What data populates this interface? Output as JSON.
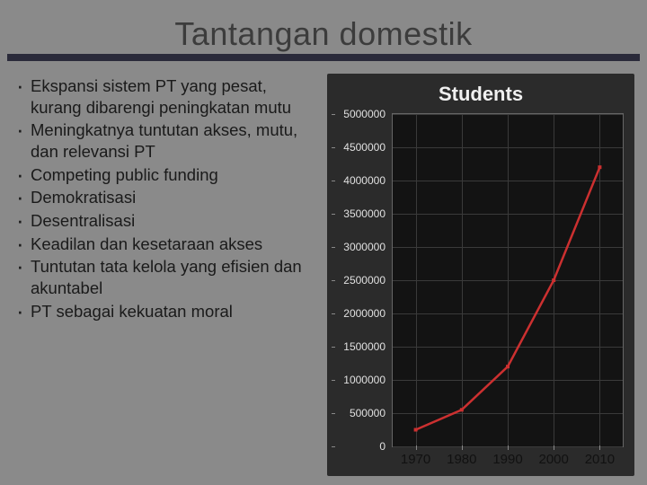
{
  "title": "Tantangan domestik",
  "bullets": [
    "Ekspansi sistem PT yang pesat, kurang dibarengi peningkatan mutu",
    "Meningkatnya tuntutan akses, mutu, dan relevansi PT",
    "Competing public funding",
    "Demokratisasi",
    "Desentralisasi",
    "Keadilan dan kesetaraan akses",
    "Tuntutan tata kelola yang efisien dan akuntabel",
    "PT sebagai kekuatan moral"
  ],
  "chart": {
    "type": "line",
    "title": "Students",
    "background_color": "#2b2b2b",
    "plot_bg": "#131313",
    "grid_color": "#3a3a3a",
    "axis_color": "#666666",
    "tick_label_color": "#e0e0e0",
    "x_label_color": "#111111",
    "line_color": "#cc3030",
    "marker_color": "#cc3030",
    "line_width": 2.5,
    "marker_size": 4,
    "title_fontsize": 22,
    "ytick_fontsize": 12,
    "xtick_fontsize": 15,
    "xlim": [
      1965,
      2015
    ],
    "ylim": [
      0,
      5000000
    ],
    "yticks": [
      0,
      500000,
      1000000,
      1500000,
      2000000,
      2500000,
      3000000,
      3500000,
      4000000,
      4500000,
      5000000
    ],
    "x": [
      1970,
      1980,
      1990,
      2000,
      2010
    ],
    "y": [
      250000,
      550000,
      1200000,
      2500000,
      4200000
    ]
  }
}
